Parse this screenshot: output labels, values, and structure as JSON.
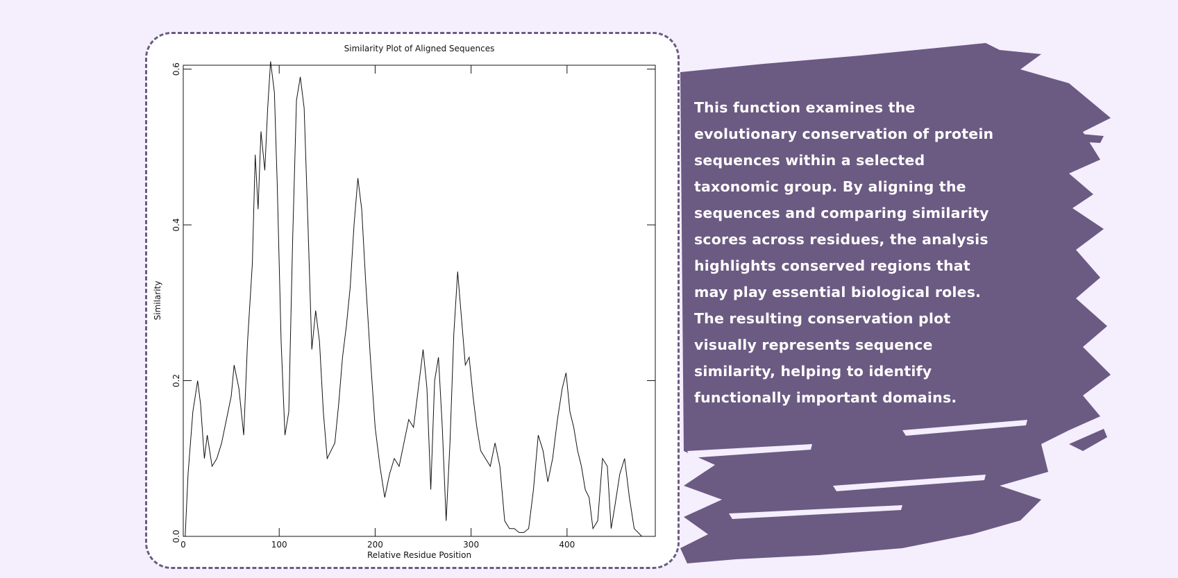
{
  "chart_data": {
    "type": "line",
    "title": "Similarity Plot of Aligned Sequences",
    "x_label": "Relative Residue Position",
    "y_label": "Similarity",
    "x": [
      2,
      5,
      10,
      15,
      18,
      22,
      25,
      30,
      35,
      40,
      45,
      50,
      53,
      58,
      63,
      67,
      72,
      75,
      78,
      81,
      85,
      88,
      91,
      95,
      98,
      102,
      106,
      110,
      114,
      118,
      122,
      126,
      130,
      134,
      138,
      142,
      146,
      150,
      154,
      158,
      162,
      166,
      170,
      174,
      178,
      182,
      186,
      190,
      195,
      200,
      205,
      210,
      215,
      220,
      225,
      230,
      235,
      240,
      245,
      250,
      254,
      258,
      262,
      266,
      270,
      274,
      278,
      282,
      286,
      290,
      294,
      298,
      302,
      306,
      310,
      315,
      320,
      325,
      330,
      335,
      340,
      345,
      350,
      355,
      360,
      365,
      370,
      375,
      380,
      385,
      390,
      395,
      399,
      403,
      407,
      411,
      415,
      419,
      423,
      427,
      432,
      437,
      442,
      446,
      450,
      455,
      460,
      465,
      470,
      478
    ],
    "series": [
      {
        "name": "Similarity",
        "color": "#111111",
        "values": [
          0.0,
          0.08,
          0.16,
          0.2,
          0.17,
          0.1,
          0.13,
          0.09,
          0.1,
          0.12,
          0.15,
          0.18,
          0.22,
          0.19,
          0.13,
          0.25,
          0.35,
          0.49,
          0.42,
          0.52,
          0.47,
          0.55,
          0.61,
          0.57,
          0.45,
          0.25,
          0.13,
          0.16,
          0.38,
          0.56,
          0.59,
          0.55,
          0.4,
          0.24,
          0.29,
          0.25,
          0.16,
          0.1,
          0.11,
          0.12,
          0.17,
          0.23,
          0.27,
          0.32,
          0.4,
          0.46,
          0.42,
          0.33,
          0.23,
          0.14,
          0.09,
          0.05,
          0.08,
          0.1,
          0.09,
          0.12,
          0.15,
          0.14,
          0.19,
          0.24,
          0.19,
          0.06,
          0.2,
          0.23,
          0.14,
          0.02,
          0.12,
          0.26,
          0.34,
          0.28,
          0.22,
          0.23,
          0.18,
          0.14,
          0.11,
          0.1,
          0.09,
          0.12,
          0.09,
          0.02,
          0.01,
          0.01,
          0.005,
          0.005,
          0.01,
          0.06,
          0.13,
          0.11,
          0.07,
          0.1,
          0.15,
          0.19,
          0.21,
          0.16,
          0.14,
          0.11,
          0.09,
          0.06,
          0.05,
          0.01,
          0.02,
          0.1,
          0.09,
          0.01,
          0.04,
          0.08,
          0.1,
          0.05,
          0.01,
          0.0
        ]
      }
    ],
    "xlim": [
      0,
      492
    ],
    "ylim": [
      0,
      0.605
    ],
    "xticks": [
      0,
      100,
      200,
      300,
      400
    ],
    "yticks": [
      {
        "value": 0,
        "label": "0.0"
      },
      0.2,
      0.4,
      0.6
    ]
  },
  "panel": {
    "lines": [
      "This function examines the",
      "evolutionary conservation of protein",
      "sequences within a selected",
      "taxonomic group. By aligning the",
      "sequences and comparing similarity",
      "scores across residues, the analysis",
      "highlights conserved regions that",
      "may play essential biological roles.",
      "The resulting conservation plot",
      "visually represents sequence",
      "similarity, helping to identify",
      "functionally important domains."
    ]
  }
}
